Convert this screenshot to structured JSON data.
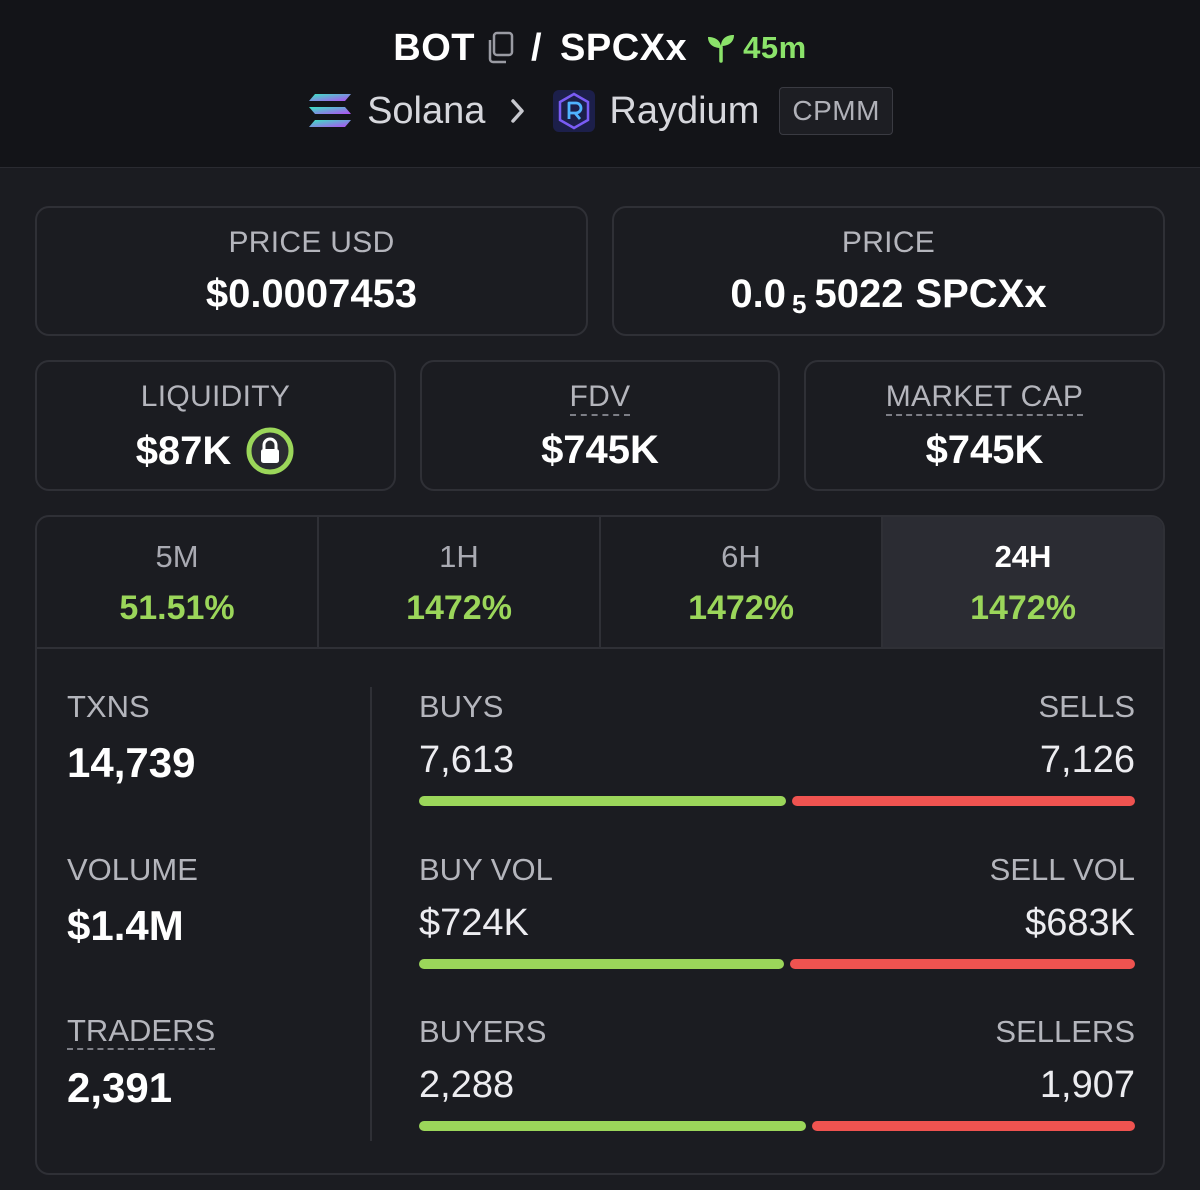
{
  "header": {
    "base_token": "BOT",
    "separator": "/",
    "quote_token": "SPCXx",
    "pair_age": "45m",
    "chain": "Solana",
    "dex": "Raydium",
    "pool_type": "CPMM",
    "colors": {
      "age": "#8be36a",
      "header_bg": "#131418"
    }
  },
  "price_usd": {
    "label": "PRICE USD",
    "value": "$0.0007453"
  },
  "price_native": {
    "label": "PRICE",
    "prefix": "0.0",
    "zeros_subscript": "5",
    "digits": "5022",
    "unit": "SPCXx"
  },
  "liquidity": {
    "label": "LIQUIDITY",
    "value": "$87K",
    "lock_icon": "lock-icon"
  },
  "fdv": {
    "label": "FDV",
    "value": "$745K"
  },
  "market_cap": {
    "label": "MARKET CAP",
    "value": "$745K"
  },
  "timeframes": [
    {
      "label": "5M",
      "change": "51.51%"
    },
    {
      "label": "1H",
      "change": "1472%"
    },
    {
      "label": "6H",
      "change": "1472%"
    },
    {
      "label": "24H",
      "change": "1472%"
    }
  ],
  "active_timeframe": "24H",
  "stats": {
    "txns": {
      "label": "TXNS",
      "value": "14,739"
    },
    "volume": {
      "label": "VOLUME",
      "value": "$1.4M"
    },
    "traders": {
      "label": "TRADERS",
      "value": "2,391"
    }
  },
  "splits": [
    {
      "left_label": "BUYS",
      "left_value": "7,613",
      "right_label": "SELLS",
      "right_value": "7,126",
      "left_fraction": 0.5165
    },
    {
      "left_label": "BUY VOL",
      "left_value": "$724K",
      "right_label": "SELL VOL",
      "right_value": "$683K",
      "left_fraction": 0.5146
    },
    {
      "left_label": "BUYERS",
      "left_value": "2,288",
      "right_label": "SELLERS",
      "right_value": "1,907",
      "left_fraction": 0.5454
    }
  ],
  "colors": {
    "positive": "#9bd65a",
    "negative": "#ef5350",
    "card_border": "#2f3036"
  }
}
